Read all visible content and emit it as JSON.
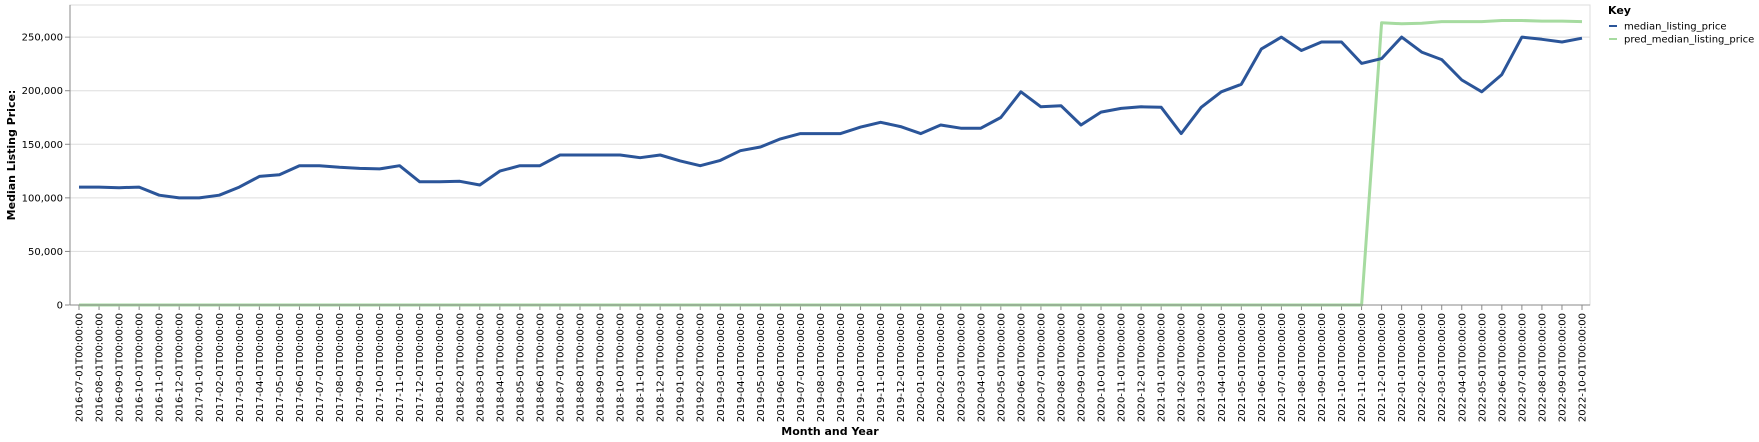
{
  "chart_data": {
    "type": "line",
    "xlabel": "Month and Year",
    "ylabel": "Median Listing Price:",
    "ylim": [
      0,
      280000
    ],
    "yticks": [
      0,
      50000,
      100000,
      150000,
      200000,
      250000
    ],
    "ytick_labels": [
      "0",
      "50,000",
      "100,000",
      "150,000",
      "200,000",
      "250,000"
    ],
    "grid": true,
    "legend": {
      "title": "Key",
      "placement": "top-right"
    },
    "x": [
      "2016-07-01T00:00:00",
      "2016-08-01T00:00:00",
      "2016-09-01T00:00:00",
      "2016-10-01T00:00:00",
      "2016-11-01T00:00:00",
      "2016-12-01T00:00:00",
      "2017-01-01T00:00:00",
      "2017-02-01T00:00:00",
      "2017-03-01T00:00:00",
      "2017-04-01T00:00:00",
      "2017-05-01T00:00:00",
      "2017-06-01T00:00:00",
      "2017-07-01T00:00:00",
      "2017-08-01T00:00:00",
      "2017-09-01T00:00:00",
      "2017-10-01T00:00:00",
      "2017-11-01T00:00:00",
      "2017-12-01T00:00:00",
      "2018-01-01T00:00:00",
      "2018-02-01T00:00:00",
      "2018-03-01T00:00:00",
      "2018-04-01T00:00:00",
      "2018-05-01T00:00:00",
      "2018-06-01T00:00:00",
      "2018-07-01T00:00:00",
      "2018-08-01T00:00:00",
      "2018-09-01T00:00:00",
      "2018-10-01T00:00:00",
      "2018-11-01T00:00:00",
      "2018-12-01T00:00:00",
      "2019-01-01T00:00:00",
      "2019-02-01T00:00:00",
      "2019-03-01T00:00:00",
      "2019-04-01T00:00:00",
      "2019-05-01T00:00:00",
      "2019-06-01T00:00:00",
      "2019-07-01T00:00:00",
      "2019-08-01T00:00:00",
      "2019-09-01T00:00:00",
      "2019-10-01T00:00:00",
      "2019-11-01T00:00:00",
      "2019-12-01T00:00:00",
      "2020-01-01T00:00:00",
      "2020-02-01T00:00:00",
      "2020-03-01T00:00:00",
      "2020-04-01T00:00:00",
      "2020-05-01T00:00:00",
      "2020-06-01T00:00:00",
      "2020-07-01T00:00:00",
      "2020-08-01T00:00:00",
      "2020-09-01T00:00:00",
      "2020-10-01T00:00:00",
      "2020-11-01T00:00:00",
      "2020-12-01T00:00:00",
      "2021-01-01T00:00:00",
      "2021-02-01T00:00:00",
      "2021-03-01T00:00:00",
      "2021-04-01T00:00:00",
      "2021-05-01T00:00:00",
      "2021-06-01T00:00:00",
      "2021-07-01T00:00:00",
      "2021-08-01T00:00:00",
      "2021-09-01T00:00:00",
      "2021-10-01T00:00:00",
      "2021-11-01T00:00:00",
      "2021-12-01T00:00:00",
      "2022-01-01T00:00:00",
      "2022-02-01T00:00:00",
      "2022-03-01T00:00:00",
      "2022-04-01T00:00:00",
      "2022-05-01T00:00:00",
      "2022-06-01T00:00:00",
      "2022-07-01T00:00:00",
      "2022-08-01T00:00:00",
      "2022-09-01T00:00:00",
      "2022-10-01T00:00:00"
    ],
    "series": [
      {
        "name": "median_listing_price",
        "color": "#2b5599",
        "values": [
          110000,
          110000,
          109500,
          110000,
          102500,
          100000,
          100000,
          102500,
          110000,
          120000,
          121500,
          130000,
          130000,
          128500,
          127500,
          127000,
          130000,
          115000,
          115000,
          115500,
          112000,
          125000,
          130000,
          130000,
          140000,
          140000,
          140000,
          140000,
          137500,
          140000,
          134500,
          130000,
          135000,
          144000,
          147500,
          155000,
          160000,
          160000,
          160000,
          166000,
          170500,
          166500,
          160000,
          168000,
          165000,
          165000,
          175000,
          199000,
          185000,
          186000,
          168000,
          180000,
          183500,
          185000,
          184500,
          160000,
          184500,
          199000,
          206000,
          239000,
          250000,
          237500,
          245500,
          245500,
          225500,
          230000,
          250000,
          236000,
          229000,
          210000,
          199000,
          215000,
          250000,
          248000,
          245500,
          249000
        ]
      },
      {
        "name": "pred_median_listing_price",
        "color": "#a6dba0",
        "values": [
          0,
          0,
          0,
          0,
          0,
          0,
          0,
          0,
          0,
          0,
          0,
          0,
          0,
          0,
          0,
          0,
          0,
          0,
          0,
          0,
          0,
          0,
          0,
          0,
          0,
          0,
          0,
          0,
          0,
          0,
          0,
          0,
          0,
          0,
          0,
          0,
          0,
          0,
          0,
          0,
          0,
          0,
          0,
          0,
          0,
          0,
          0,
          0,
          0,
          0,
          0,
          0,
          0,
          0,
          0,
          0,
          0,
          0,
          0,
          0,
          0,
          0,
          0,
          0,
          0,
          263500,
          262500,
          263000,
          264500,
          264500,
          264500,
          265500,
          265500,
          265000,
          265000,
          264500
        ]
      }
    ]
  }
}
